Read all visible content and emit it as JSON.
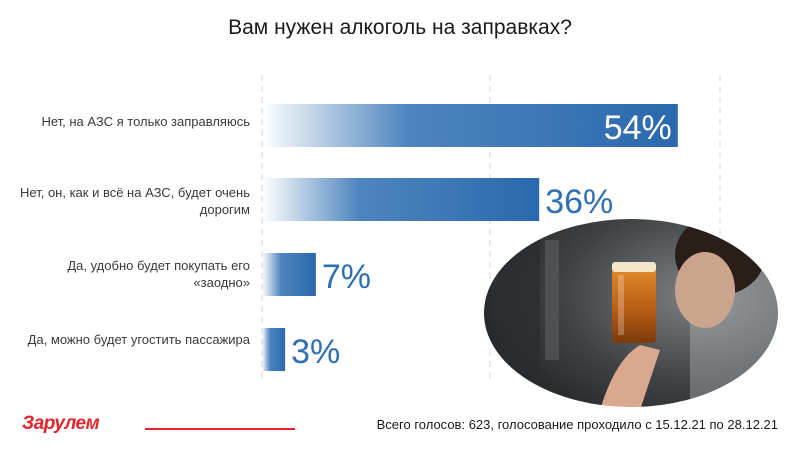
{
  "title": "Вам нужен алкоголь на заправках?",
  "chart_data": {
    "type": "bar",
    "orientation": "horizontal",
    "title": "Вам нужен алкоголь на заправках?",
    "categories": [
      "Нет, на АЗС я только заправляюсь",
      "Нет, он, как и всё на АЗС, будет очень дорогим",
      "Да, удобно будет покупать его «заодно»",
      "Да, можно будет угостить пассажира"
    ],
    "values": [
      54,
      36,
      7,
      3
    ],
    "labels": [
      "54%",
      "36%",
      "7%",
      "3%"
    ],
    "unit": "%",
    "xlim": [
      0,
      100
    ],
    "grid": true,
    "bar_color": "#2f6fb3"
  },
  "photo": {
    "icon": "beer-glass-photo"
  },
  "footer": {
    "logo": "За рулем",
    "text": "Всего голосов: 623, голосование проходило с 15.12.21 по 28.12.21",
    "accent": "#e3262c"
  }
}
